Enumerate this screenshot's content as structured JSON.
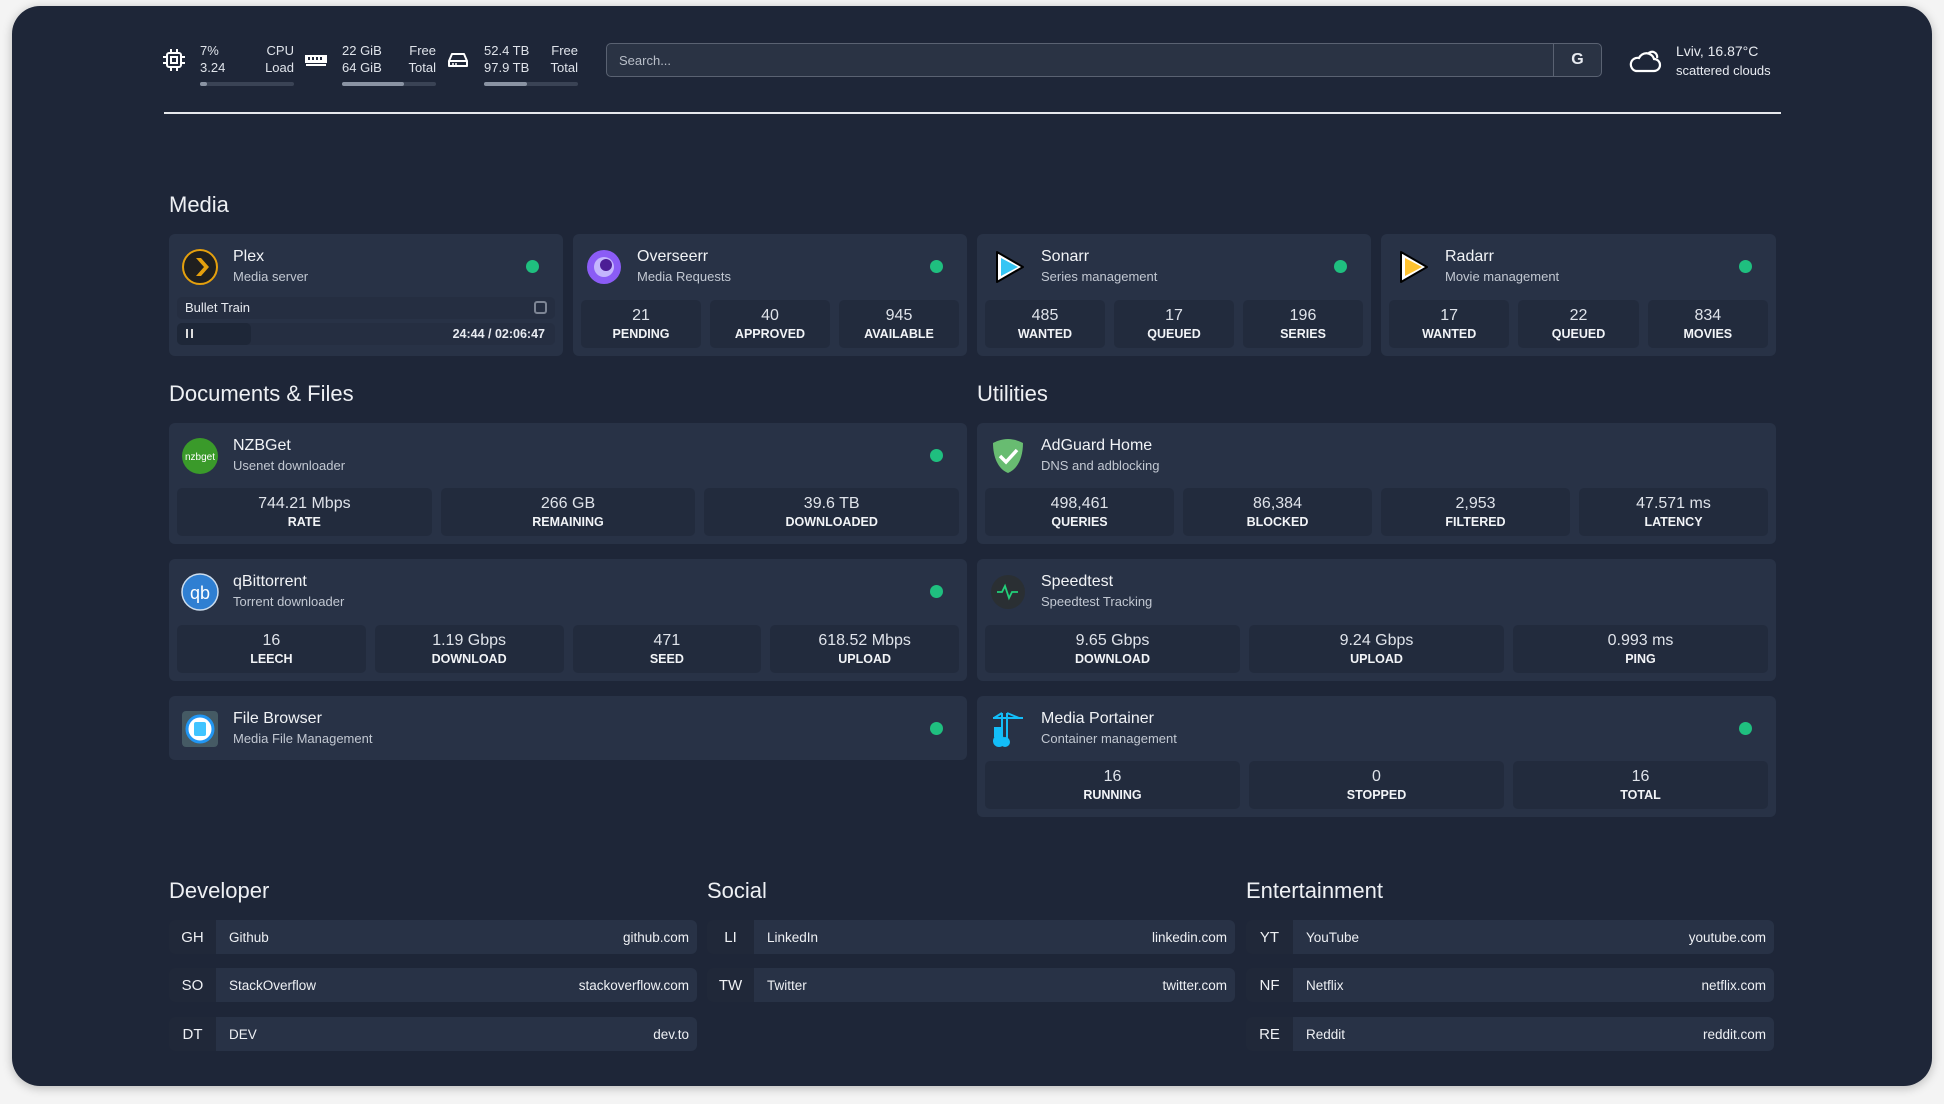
{
  "system": {
    "cpu": {
      "icon": "cpu-icon",
      "value1": "7%",
      "value2": "3.24",
      "label1": "CPU",
      "label2": "Load",
      "usage": 0.07
    },
    "memory": {
      "icon": "memory-icon",
      "value1": "22 GiB",
      "value2": "64 GiB",
      "label1": "Free",
      "label2": "Total",
      "usage": 0.66
    },
    "disk": {
      "icon": "disk-icon",
      "value1": "52.4 TB",
      "value2": "97.9 TB",
      "label1": "Free",
      "label2": "Total",
      "usage": 0.46
    }
  },
  "search": {
    "placeholder": "Search...",
    "engine_label": "G"
  },
  "weather": {
    "icon": "cloud-icon",
    "location": "Lviv, 16.87°C",
    "condition": "scattered clouds"
  },
  "sections": {
    "media": "Media",
    "documents": "Documents & Files",
    "utilities": "Utilities",
    "developer": "Developer",
    "social": "Social",
    "entertainment": "Entertainment"
  },
  "status_color": "#1fbf7f",
  "services": [
    {
      "id": "plex",
      "name": "Plex",
      "description": "Media server",
      "icon": "plex-icon",
      "status": "online",
      "now_playing": {
        "title": "Bullet Train",
        "position": "24:44",
        "duration": "02:06:47",
        "separator": "/",
        "progress": 0.195,
        "state": "paused"
      }
    },
    {
      "id": "overseerr",
      "name": "Overseerr",
      "description": "Media Requests",
      "icon": "overseerr-icon",
      "status": "online",
      "stats": [
        {
          "value": "21",
          "label": "PENDING"
        },
        {
          "value": "40",
          "label": "APPROVED"
        },
        {
          "value": "945",
          "label": "AVAILABLE"
        }
      ]
    },
    {
      "id": "sonarr",
      "name": "Sonarr",
      "description": "Series management",
      "icon": "sonarr-icon",
      "status": "online",
      "stats": [
        {
          "value": "485",
          "label": "WANTED"
        },
        {
          "value": "17",
          "label": "QUEUED"
        },
        {
          "value": "196",
          "label": "SERIES"
        }
      ]
    },
    {
      "id": "radarr",
      "name": "Radarr",
      "description": "Movie management",
      "icon": "radarr-icon",
      "status": "online",
      "stats": [
        {
          "value": "17",
          "label": "WANTED"
        },
        {
          "value": "22",
          "label": "QUEUED"
        },
        {
          "value": "834",
          "label": "MOVIES"
        }
      ]
    },
    {
      "id": "nzbget",
      "name": "NZBGet",
      "description": "Usenet downloader",
      "icon": "nzbget-icon",
      "icon_text": "nzbget",
      "status": "online",
      "stats": [
        {
          "value": "744.21 Mbps",
          "label": "RATE"
        },
        {
          "value": "266 GB",
          "label": "REMAINING"
        },
        {
          "value": "39.6 TB",
          "label": "DOWNLOADED"
        }
      ]
    },
    {
      "id": "qbittorrent",
      "name": "qBittorrent",
      "description": "Torrent downloader",
      "icon": "qbittorrent-icon",
      "icon_text": "qb",
      "status": "online",
      "stats": [
        {
          "value": "16",
          "label": "LEECH"
        },
        {
          "value": "1.19 Gbps",
          "label": "DOWNLOAD"
        },
        {
          "value": "471",
          "label": "SEED"
        },
        {
          "value": "618.52 Mbps",
          "label": "UPLOAD"
        }
      ]
    },
    {
      "id": "filebrowser",
      "name": "File Browser",
      "description": "Media File Management",
      "icon": "filebrowser-icon",
      "status": "online"
    },
    {
      "id": "adguard",
      "name": "AdGuard Home",
      "description": "DNS and adblocking",
      "icon": "adguard-icon",
      "stats": [
        {
          "value": "498,461",
          "label": "QUERIES"
        },
        {
          "value": "86,384",
          "label": "BLOCKED"
        },
        {
          "value": "2,953",
          "label": "FILTERED"
        },
        {
          "value": "47.571 ms",
          "label": "LATENCY"
        }
      ]
    },
    {
      "id": "speedtest",
      "name": "Speedtest",
      "description": "Speedtest Tracking",
      "icon": "speedtest-icon",
      "stats": [
        {
          "value": "9.65 Gbps",
          "label": "DOWNLOAD"
        },
        {
          "value": "9.24 Gbps",
          "label": "UPLOAD"
        },
        {
          "value": "0.993 ms",
          "label": "PING"
        }
      ]
    },
    {
      "id": "portainer",
      "name": "Media Portainer",
      "description": "Container management",
      "icon": "portainer-icon",
      "status": "online",
      "stats": [
        {
          "value": "16",
          "label": "RUNNING"
        },
        {
          "value": "0",
          "label": "STOPPED"
        },
        {
          "value": "16",
          "label": "TOTAL"
        }
      ]
    }
  ],
  "bookmarks": {
    "developer": [
      {
        "abbr": "GH",
        "name": "Github",
        "url": "github.com"
      },
      {
        "abbr": "SO",
        "name": "StackOverflow",
        "url": "stackoverflow.com"
      },
      {
        "abbr": "DT",
        "name": "DEV",
        "url": "dev.to"
      }
    ],
    "social": [
      {
        "abbr": "LI",
        "name": "LinkedIn",
        "url": "linkedin.com"
      },
      {
        "abbr": "TW",
        "name": "Twitter",
        "url": "twitter.com"
      }
    ],
    "entertainment": [
      {
        "abbr": "YT",
        "name": "YouTube",
        "url": "youtube.com"
      },
      {
        "abbr": "NF",
        "name": "Netflix",
        "url": "netflix.com"
      },
      {
        "abbr": "RE",
        "name": "Reddit",
        "url": "reddit.com"
      }
    ]
  }
}
